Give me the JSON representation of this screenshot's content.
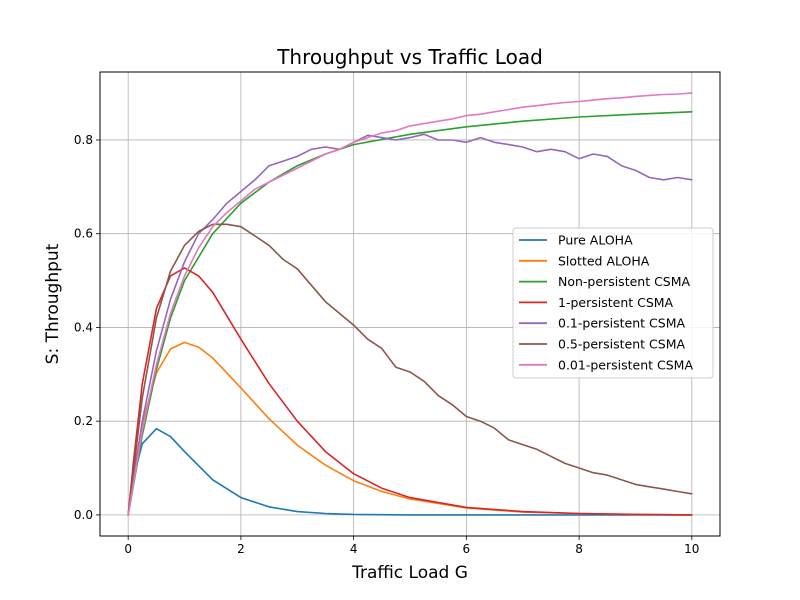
{
  "chart_data": {
    "type": "line",
    "title": "Throughput vs Traffic Load",
    "xlabel": "Traffic Load G",
    "ylabel": "S: Throughput",
    "xlim": [
      -0.5,
      10.5
    ],
    "ylim": [
      -0.045,
      0.945
    ],
    "xticks": [
      0,
      2,
      4,
      6,
      8,
      10
    ],
    "xtick_labels": [
      "0",
      "2",
      "4",
      "6",
      "8",
      "10"
    ],
    "yticks": [
      0.0,
      0.2,
      0.4,
      0.6,
      0.8
    ],
    "ytick_labels": [
      "0.0",
      "0.2",
      "0.4",
      "0.6",
      "0.8"
    ],
    "grid": true,
    "legend_position": "center-right",
    "series": [
      {
        "name": "Pure ALOHA",
        "color": "#1f77b4",
        "x": [
          0,
          0.1,
          0.25,
          0.5,
          0.75,
          1,
          1.5,
          2,
          2.5,
          3,
          3.5,
          4,
          5,
          6,
          7,
          8,
          10
        ],
        "y": [
          0,
          0.082,
          0.152,
          0.184,
          0.167,
          0.135,
          0.075,
          0.037,
          0.017,
          0.007,
          0.003,
          0.001,
          0.0,
          0.0,
          0.0,
          0.0,
          0.0
        ]
      },
      {
        "name": "Slotted ALOHA",
        "color": "#ff7f0e",
        "x": [
          0,
          0.1,
          0.25,
          0.5,
          0.75,
          1,
          1.25,
          1.5,
          2,
          2.5,
          3,
          3.5,
          4,
          4.5,
          5,
          6,
          7,
          8,
          9,
          10
        ],
        "y": [
          0,
          0.09,
          0.195,
          0.303,
          0.354,
          0.368,
          0.358,
          0.335,
          0.271,
          0.205,
          0.149,
          0.106,
          0.073,
          0.05,
          0.034,
          0.015,
          0.006,
          0.003,
          0.001,
          0.0
        ]
      },
      {
        "name": "Non-persistent CSMA",
        "color": "#2ca02c",
        "x": [
          0,
          0.25,
          0.5,
          0.75,
          1,
          1.5,
          2,
          2.5,
          3,
          3.5,
          4,
          5,
          6,
          7,
          8,
          9,
          10
        ],
        "y": [
          0,
          0.17,
          0.31,
          0.42,
          0.5,
          0.6,
          0.665,
          0.71,
          0.745,
          0.77,
          0.79,
          0.812,
          0.828,
          0.84,
          0.849,
          0.855,
          0.86
        ]
      },
      {
        "name": "1-persistent CSMA",
        "color": "#d62728",
        "x": [
          0,
          0.1,
          0.25,
          0.5,
          0.75,
          1,
          1.25,
          1.5,
          2,
          2.5,
          3,
          3.5,
          4,
          4.5,
          5,
          6,
          7,
          8,
          9,
          10
        ],
        "y": [
          0,
          0.12,
          0.28,
          0.44,
          0.51,
          0.527,
          0.51,
          0.475,
          0.375,
          0.28,
          0.2,
          0.135,
          0.088,
          0.057,
          0.037,
          0.016,
          0.007,
          0.003,
          0.001,
          0.0
        ]
      },
      {
        "name": "0.1-persistent CSMA",
        "color": "#9467bd",
        "x": [
          0,
          0.25,
          0.5,
          0.75,
          1,
          1.25,
          1.5,
          1.75,
          2,
          2.25,
          2.5,
          2.75,
          3,
          3.25,
          3.5,
          3.75,
          4,
          4.25,
          4.5,
          4.75,
          5,
          5.25,
          5.5,
          5.75,
          6,
          6.25,
          6.5,
          6.75,
          7,
          7.25,
          7.5,
          7.75,
          8,
          8.25,
          8.5,
          8.75,
          9,
          9.25,
          9.5,
          9.75,
          10
        ],
        "y": [
          0,
          0.2,
          0.35,
          0.46,
          0.54,
          0.6,
          0.63,
          0.665,
          0.69,
          0.715,
          0.745,
          0.755,
          0.765,
          0.78,
          0.785,
          0.78,
          0.795,
          0.81,
          0.805,
          0.8,
          0.805,
          0.812,
          0.8,
          0.8,
          0.795,
          0.805,
          0.795,
          0.79,
          0.785,
          0.775,
          0.78,
          0.775,
          0.76,
          0.77,
          0.765,
          0.745,
          0.735,
          0.72,
          0.715,
          0.72,
          0.715
        ]
      },
      {
        "name": "0.5-persistent CSMA",
        "color": "#8c564b",
        "x": [
          0,
          0.25,
          0.5,
          0.75,
          1,
          1.25,
          1.5,
          1.75,
          2,
          2.25,
          2.5,
          2.75,
          3,
          3.25,
          3.5,
          3.75,
          4,
          4.25,
          4.5,
          4.75,
          5,
          5.25,
          5.5,
          5.75,
          6,
          6.25,
          6.5,
          6.75,
          7,
          7.25,
          7.5,
          7.75,
          8,
          8.25,
          8.5,
          8.75,
          9,
          9.25,
          9.5,
          9.75,
          10
        ],
        "y": [
          0,
          0.25,
          0.42,
          0.52,
          0.575,
          0.605,
          0.62,
          0.62,
          0.615,
          0.595,
          0.575,
          0.545,
          0.525,
          0.49,
          0.455,
          0.43,
          0.405,
          0.375,
          0.355,
          0.315,
          0.305,
          0.285,
          0.255,
          0.235,
          0.21,
          0.2,
          0.185,
          0.16,
          0.15,
          0.14,
          0.125,
          0.11,
          0.1,
          0.09,
          0.085,
          0.075,
          0.065,
          0.06,
          0.055,
          0.05,
          0.045
        ]
      },
      {
        "name": "0.01-persistent CSMA",
        "color": "#e377c2",
        "x": [
          0,
          0.25,
          0.5,
          0.75,
          1,
          1.25,
          1.5,
          1.75,
          2,
          2.25,
          2.5,
          2.75,
          3,
          3.25,
          3.5,
          3.75,
          4,
          4.25,
          4.5,
          4.75,
          5,
          5.25,
          5.5,
          5.75,
          6,
          6.25,
          6.5,
          6.75,
          7,
          7.25,
          7.5,
          7.75,
          8,
          8.25,
          8.5,
          8.75,
          9,
          9.25,
          9.5,
          9.75,
          10
        ],
        "y": [
          0,
          0.18,
          0.32,
          0.43,
          0.51,
          0.57,
          0.615,
          0.645,
          0.67,
          0.695,
          0.71,
          0.725,
          0.74,
          0.755,
          0.77,
          0.78,
          0.795,
          0.805,
          0.815,
          0.82,
          0.83,
          0.835,
          0.84,
          0.845,
          0.852,
          0.855,
          0.86,
          0.865,
          0.87,
          0.873,
          0.877,
          0.88,
          0.882,
          0.885,
          0.888,
          0.89,
          0.893,
          0.895,
          0.897,
          0.898,
          0.9
        ]
      }
    ]
  }
}
